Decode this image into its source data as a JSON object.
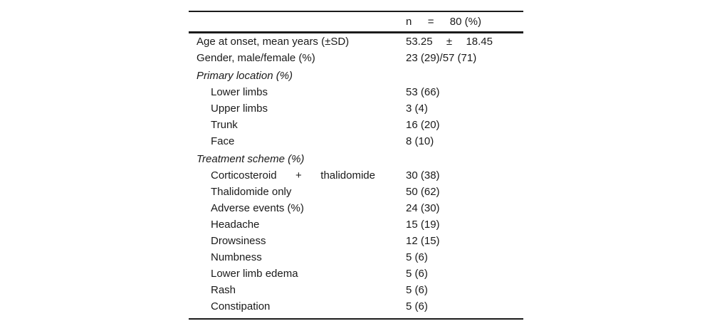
{
  "table": {
    "header": {
      "value_parts": [
        "n",
        "=",
        "80 (%)"
      ]
    },
    "rows": [
      {
        "label": "Age at onset, mean years (±SD)",
        "value_parts": [
          "53.25",
          "±",
          "18.45"
        ]
      },
      {
        "label": "Gender, male/female (%)",
        "value": "23 (29)/57 (71)"
      },
      {
        "label": "Primary location (%)",
        "value": ""
      },
      {
        "label": "Lower limbs",
        "value": "53 (66)"
      },
      {
        "label": "Upper limbs",
        "value": "3 (4)"
      },
      {
        "label": "Trunk",
        "value": "16 (20)"
      },
      {
        "label": "Face",
        "value": "8 (10)"
      },
      {
        "label": "Treatment scheme (%)",
        "value": ""
      },
      {
        "label_parts": [
          "Corticosteroid",
          "+",
          "thalidomide"
        ],
        "value": "30 (38)"
      },
      {
        "label": "Thalidomide only",
        "value": "50 (62)"
      },
      {
        "label": "Adverse events (%)",
        "value": "24 (30)"
      },
      {
        "label": "Headache",
        "value": "15 (19)"
      },
      {
        "label": "Drowsiness",
        "value": "12 (15)"
      },
      {
        "label": "Numbness",
        "value": "5 (6)"
      },
      {
        "label": "Lower limb edema",
        "value": "5 (6)"
      },
      {
        "label": "Rash",
        "value": "5 (6)"
      },
      {
        "label": "Constipation",
        "value": "5 (6)"
      }
    ],
    "colors": {
      "text": "#1a1a1a",
      "rule": "#1b1b1b"
    }
  }
}
